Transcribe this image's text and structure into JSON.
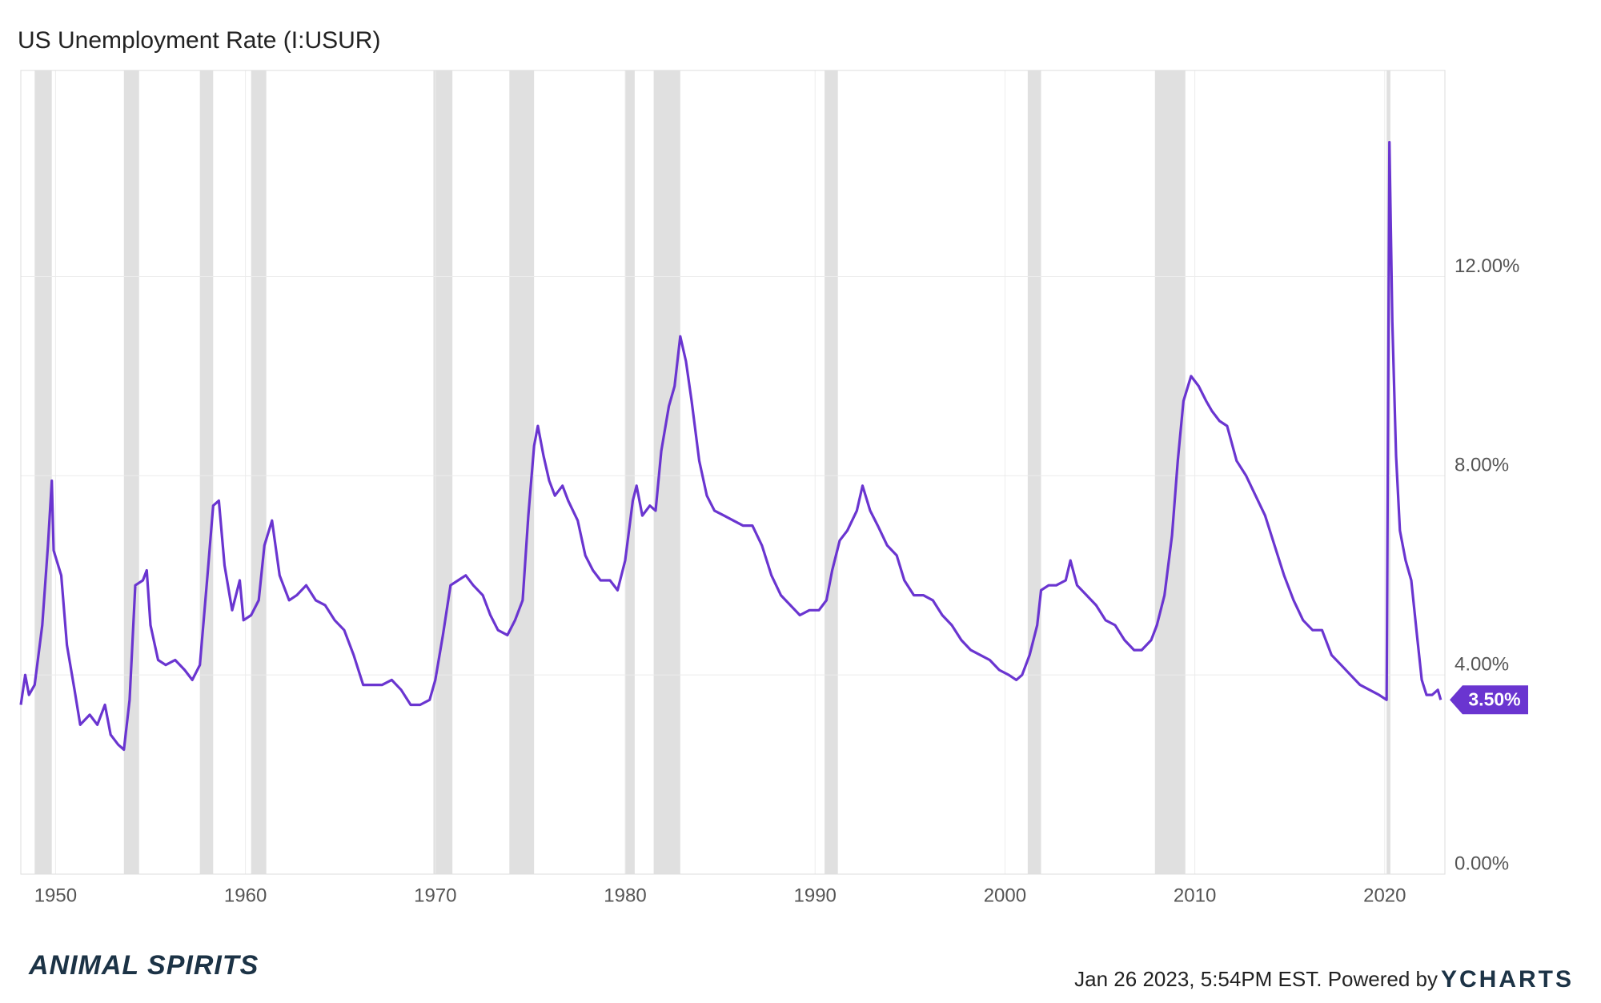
{
  "chart_data": {
    "type": "line",
    "title": "US Unemployment Rate (I:USUR)",
    "series": [
      {
        "name": "US Unemployment Rate",
        "color": "#6a35d0",
        "x": [
          1948.17,
          1948.4,
          1948.6,
          1948.9,
          1949.3,
          1949.6,
          1949.8,
          1949.9,
          1950.3,
          1950.6,
          1951.0,
          1951.3,
          1951.8,
          1952.2,
          1952.6,
          1952.9,
          1953.3,
          1953.6,
          1953.9,
          1954.2,
          1954.6,
          1954.8,
          1955.0,
          1955.4,
          1955.8,
          1956.3,
          1956.8,
          1957.2,
          1957.6,
          1958.0,
          1958.3,
          1958.6,
          1958.9,
          1959.3,
          1959.7,
          1959.9,
          1960.3,
          1960.7,
          1961.0,
          1961.4,
          1961.8,
          1962.3,
          1962.7,
          1963.2,
          1963.7,
          1964.2,
          1964.7,
          1965.2,
          1965.7,
          1966.2,
          1966.7,
          1967.2,
          1967.7,
          1968.2,
          1968.7,
          1969.2,
          1969.7,
          1970.0,
          1970.4,
          1970.8,
          1971.2,
          1971.6,
          1972.0,
          1972.5,
          1972.9,
          1973.3,
          1973.8,
          1974.2,
          1974.6,
          1974.9,
          1975.2,
          1975.4,
          1975.7,
          1976.0,
          1976.3,
          1976.7,
          1977.0,
          1977.5,
          1977.9,
          1978.3,
          1978.7,
          1979.2,
          1979.6,
          1980.0,
          1980.4,
          1980.6,
          1980.9,
          1981.3,
          1981.6,
          1981.9,
          1982.3,
          1982.6,
          1982.9,
          1983.2,
          1983.5,
          1983.9,
          1984.3,
          1984.7,
          1985.2,
          1985.7,
          1986.2,
          1986.7,
          1987.2,
          1987.7,
          1988.2,
          1988.7,
          1989.2,
          1989.7,
          1990.2,
          1990.6,
          1990.9,
          1991.3,
          1991.7,
          1992.2,
          1992.5,
          1992.9,
          1993.3,
          1993.8,
          1994.3,
          1994.7,
          1995.2,
          1995.7,
          1996.2,
          1996.7,
          1997.2,
          1997.7,
          1998.2,
          1998.7,
          1999.2,
          1999.7,
          2000.2,
          2000.6,
          2000.9,
          2001.3,
          2001.7,
          2001.9,
          2002.3,
          2002.7,
          2003.2,
          2003.45,
          2003.8,
          2004.3,
          2004.8,
          2005.3,
          2005.8,
          2006.3,
          2006.8,
          2007.2,
          2007.7,
          2008.0,
          2008.4,
          2008.8,
          2009.1,
          2009.4,
          2009.8,
          2010.2,
          2010.6,
          2010.9,
          2011.3,
          2011.7,
          2012.2,
          2012.7,
          2013.2,
          2013.7,
          2014.2,
          2014.7,
          2015.2,
          2015.7,
          2016.2,
          2016.7,
          2017.2,
          2017.7,
          2018.2,
          2018.7,
          2019.2,
          2019.7,
          2020.1,
          2020.25,
          2020.4,
          2020.6,
          2020.8,
          2021.1,
          2021.4,
          2021.7,
          2021.95,
          2022.2,
          2022.5,
          2022.8,
          2022.95
        ],
        "values": [
          3.4,
          4.0,
          3.6,
          3.8,
          5.0,
          6.6,
          7.9,
          6.5,
          6.0,
          4.6,
          3.7,
          3.0,
          3.2,
          3.0,
          3.4,
          2.8,
          2.6,
          2.5,
          3.5,
          5.8,
          5.9,
          6.1,
          5.0,
          4.3,
          4.2,
          4.3,
          4.1,
          3.9,
          4.2,
          6.0,
          7.4,
          7.5,
          6.2,
          5.3,
          5.9,
          5.1,
          5.2,
          5.5,
          6.6,
          7.1,
          6.0,
          5.5,
          5.6,
          5.8,
          5.5,
          5.4,
          5.1,
          4.9,
          4.4,
          3.8,
          3.8,
          3.8,
          3.9,
          3.7,
          3.4,
          3.4,
          3.5,
          3.9,
          4.8,
          5.8,
          5.9,
          6.0,
          5.8,
          5.6,
          5.2,
          4.9,
          4.8,
          5.1,
          5.5,
          7.2,
          8.6,
          9.0,
          8.4,
          7.9,
          7.6,
          7.8,
          7.5,
          7.1,
          6.4,
          6.1,
          5.9,
          5.9,
          5.7,
          6.3,
          7.5,
          7.8,
          7.2,
          7.4,
          7.3,
          8.5,
          9.4,
          9.8,
          10.8,
          10.3,
          9.5,
          8.3,
          7.6,
          7.3,
          7.2,
          7.1,
          7.0,
          7.0,
          6.6,
          6.0,
          5.6,
          5.4,
          5.2,
          5.3,
          5.3,
          5.5,
          6.1,
          6.7,
          6.9,
          7.3,
          7.8,
          7.3,
          7.0,
          6.6,
          6.4,
          5.9,
          5.6,
          5.6,
          5.5,
          5.2,
          5.0,
          4.7,
          4.5,
          4.4,
          4.3,
          4.1,
          4.0,
          3.9,
          4.0,
          4.4,
          5.0,
          5.7,
          5.8,
          5.8,
          5.9,
          6.3,
          5.8,
          5.6,
          5.4,
          5.1,
          5.0,
          4.7,
          4.5,
          4.5,
          4.7,
          5.0,
          5.6,
          6.8,
          8.3,
          9.5,
          10.0,
          9.8,
          9.5,
          9.3,
          9.1,
          9.0,
          8.3,
          8.0,
          7.6,
          7.2,
          6.6,
          6.0,
          5.5,
          5.1,
          4.9,
          4.9,
          4.4,
          4.2,
          4.0,
          3.8,
          3.7,
          3.6,
          3.5,
          14.7,
          11.1,
          8.4,
          6.9,
          6.3,
          5.9,
          4.8,
          3.9,
          3.6,
          3.6,
          3.7,
          3.5
        ]
      }
    ],
    "end_label": {
      "value": 3.5,
      "label": "3.50%"
    },
    "recessions": [
      [
        1948.9,
        1949.8
      ],
      [
        1953.6,
        1954.4
      ],
      [
        1957.6,
        1958.3
      ],
      [
        1960.3,
        1961.1
      ],
      [
        1969.9,
        1970.9
      ],
      [
        1973.9,
        1975.2
      ],
      [
        1980.0,
        1980.5
      ],
      [
        1981.5,
        1982.9
      ],
      [
        1990.5,
        1991.2
      ],
      [
        2001.2,
        2001.9
      ],
      [
        2007.9,
        2009.5
      ],
      [
        2020.1,
        2020.3
      ]
    ],
    "recession_color": "#e0e0e0",
    "xlim": [
      1948.17,
      2023.17
    ],
    "xticks": [
      1950,
      1960,
      1970,
      1980,
      1990,
      2000,
      2010,
      2020
    ],
    "ylim": [
      0,
      16.14
    ],
    "yticks": [
      {
        "value": 0,
        "label": "0.00%"
      },
      {
        "value": 4,
        "label": "4.00%"
      },
      {
        "value": 8,
        "label": "8.00%"
      },
      {
        "value": 12,
        "label": "12.00%"
      }
    ],
    "grid": true,
    "logo": "ANIMAL SPIRITS",
    "footer": "Jan 26 2023, 5:54PM EST. Powered by",
    "brand": "YCHARTS"
  }
}
